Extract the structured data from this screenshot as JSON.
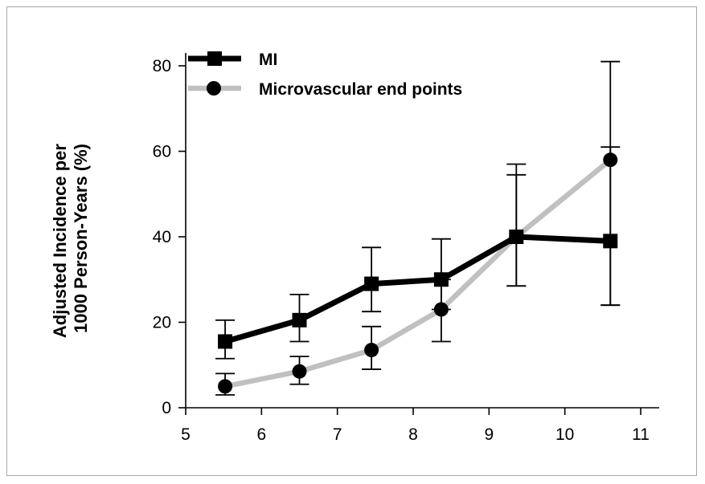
{
  "chart_data": {
    "type": "line",
    "title": "",
    "xlabel": "",
    "ylabel": "Adjusted Incidence per 1000 Person-Years (%)",
    "ylabel_lines": [
      "Adjusted Incidence per",
      "1000 Person-Years (%)"
    ],
    "xlim": [
      5,
      11
    ],
    "ylim": [
      0,
      80
    ],
    "x_ticks": [
      5,
      6,
      7,
      8,
      9,
      10,
      11
    ],
    "y_ticks": [
      0,
      20,
      40,
      60,
      80
    ],
    "x_tick_labels": [
      "5",
      "6",
      "7",
      "8",
      "9",
      "10",
      "11"
    ],
    "y_tick_labels": [
      "0",
      "20",
      "40",
      "60",
      "80"
    ],
    "grid": false,
    "legend_position": "top-left",
    "series": [
      {
        "name": "MI",
        "marker": "square",
        "color": "#000000",
        "x": [
          5.52,
          6.5,
          7.45,
          8.37,
          9.36,
          10.6
        ],
        "y": [
          15.5,
          20.5,
          29,
          30,
          40,
          39
        ],
        "err_low": [
          11.5,
          15.5,
          22.5,
          23,
          28.5,
          24
        ],
        "err_high": [
          20.5,
          26.5,
          37.5,
          39.5,
          57,
          61
        ]
      },
      {
        "name": "Microvascular end points",
        "marker": "circle",
        "color": "#c0c0c0",
        "x": [
          5.52,
          6.5,
          7.45,
          8.37,
          9.36,
          10.6
        ],
        "y": [
          5,
          8.5,
          13.5,
          23,
          40,
          58
        ],
        "err_low": [
          3,
          5.5,
          9,
          15.5,
          28.5,
          24
        ],
        "err_high": [
          8,
          12,
          19,
          30,
          54.5,
          81
        ]
      }
    ]
  }
}
